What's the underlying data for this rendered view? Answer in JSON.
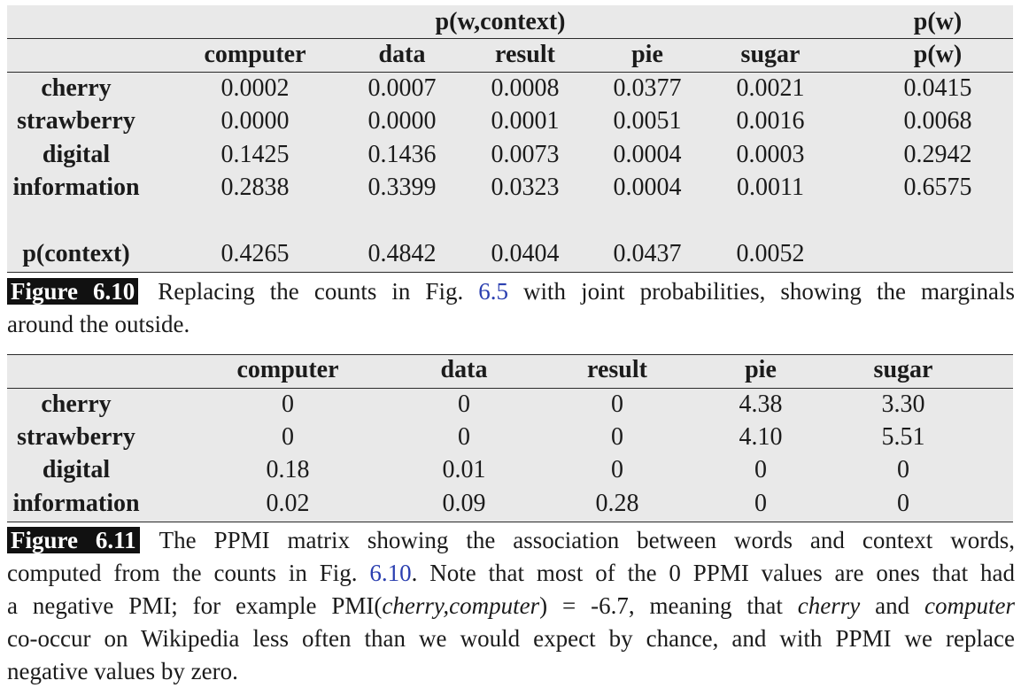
{
  "table1": {
    "group_header": "p(w,context)",
    "pw_header_top": "p(w)",
    "pw_header": "p(w)",
    "columns": [
      "computer",
      "data",
      "result",
      "pie",
      "sugar"
    ],
    "rows": [
      {
        "label": "cherry",
        "values": [
          "0.0002",
          "0.0007",
          "0.0008",
          "0.0377",
          "0.0021"
        ],
        "pw": "0.0415"
      },
      {
        "label": "strawberry",
        "values": [
          "0.0000",
          "0.0000",
          "0.0001",
          "0.0051",
          "0.0016"
        ],
        "pw": "0.0068"
      },
      {
        "label": "digital",
        "values": [
          "0.1425",
          "0.1436",
          "0.0073",
          "0.0004",
          "0.0003"
        ],
        "pw": "0.2942"
      },
      {
        "label": "information",
        "values": [
          "0.2838",
          "0.3399",
          "0.0323",
          "0.0004",
          "0.0011"
        ],
        "pw": "0.6575"
      }
    ],
    "marginal_row": {
      "label": "p(context)",
      "values": [
        "0.4265",
        "0.4842",
        "0.0404",
        "0.0437",
        "0.0052"
      ]
    }
  },
  "caption1": {
    "label": "Figure 6.10",
    "text_before_ref": "Replacing the counts in Fig.",
    "ref": "6.5",
    "text_after_ref": "with joint probabilities, showing the marginals",
    "line2": "around the outside."
  },
  "table2": {
    "columns": [
      "computer",
      "data",
      "result",
      "pie",
      "sugar"
    ],
    "rows": [
      {
        "label": "cherry",
        "values": [
          "0",
          "0",
          "0",
          "4.38",
          "3.30"
        ]
      },
      {
        "label": "strawberry",
        "values": [
          "0",
          "0",
          "0",
          "4.10",
          "5.51"
        ]
      },
      {
        "label": "digital",
        "values": [
          "0.18",
          "0.01",
          "0",
          "0",
          "0"
        ]
      },
      {
        "label": "information",
        "values": [
          "0.02",
          "0.09",
          "0.28",
          "0",
          "0"
        ]
      }
    ]
  },
  "caption2": {
    "label": "Figure 6.11",
    "line1": "The PPMI matrix showing the association between words and context words,",
    "line2_before_ref": "computed from the counts in Fig.",
    "line2_ref": "6.10",
    "line2_after_ref": ". Note that most of the 0 PPMI values are ones that had",
    "line3_a": "a negative PMI; for example PMI(",
    "line3_italic": "cherry,computer",
    "line3_b": ") = -6.7, meaning that",
    "line3_italic2": "cherry",
    "line3_c": "and",
    "line3_italic3": "computer",
    "line4": "co-occur on Wikipedia less often than we would expect by chance, and with PPMI we replace",
    "line5": "negative values by zero."
  }
}
